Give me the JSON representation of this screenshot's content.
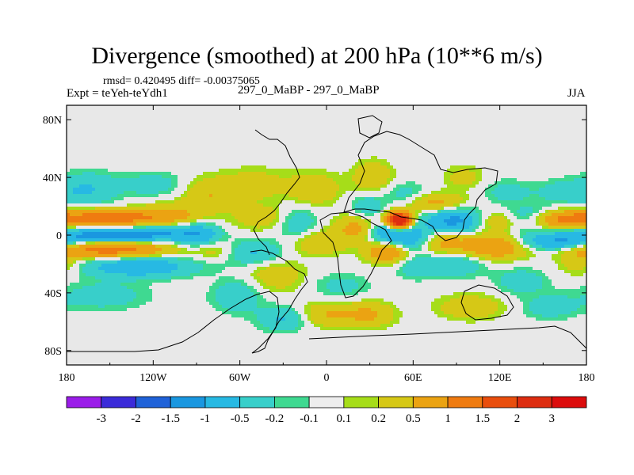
{
  "header": {
    "title": "Divergence (smoothed) at 200 hPa (10**6 m/s)",
    "stats": "rmsd= 0.420495 diff= -0.00375065",
    "expt": "Expt = teYeh-teYdh1",
    "diff_name": "297_0_MaBP - 297_0_MaBP",
    "season": "JJA"
  },
  "chart_data": {
    "type": "heatmap",
    "title": "Divergence (smoothed) at 200 hPa (10**6 m/s)",
    "xlabel": "",
    "ylabel": "",
    "xlim": [
      -180,
      180
    ],
    "ylim": [
      -90,
      90
    ],
    "xticks": [
      {
        "value": -180,
        "label": "180"
      },
      {
        "value": -120,
        "label": "120W"
      },
      {
        "value": -60,
        "label": "60W"
      },
      {
        "value": 0,
        "label": "0"
      },
      {
        "value": 60,
        "label": "60E"
      },
      {
        "value": 120,
        "label": "120E"
      },
      {
        "value": 180,
        "label": "180"
      }
    ],
    "yticks": [
      {
        "value": 80,
        "label": "80N"
      },
      {
        "value": 40,
        "label": "40N"
      },
      {
        "value": 0,
        "label": "0"
      },
      {
        "value": -40,
        "label": "40S"
      },
      {
        "value": -80,
        "label": "80S"
      }
    ],
    "colorbar": {
      "labels": [
        "-3",
        "-2",
        "-1.5",
        "-1",
        "-0.5",
        "-0.2",
        "-0.1",
        "0.1",
        "0.2",
        "0.5",
        "1",
        "1.5",
        "2",
        "3"
      ],
      "colors": [
        "#9b1de9",
        "#3b2bd9",
        "#1f62d8",
        "#1a97e0",
        "#27b9e3",
        "#38cfca",
        "#3fd991",
        "#ededed",
        "#a6dd19",
        "#d6c816",
        "#eba312",
        "#ef7b10",
        "#e94e0d",
        "#dd2d10",
        "#dc0c0c"
      ]
    },
    "features": [
      {
        "lon": -150,
        "lat": 12,
        "amp": 1.3,
        "sx": 26,
        "sy": 4
      },
      {
        "lon": -150,
        "lat": 0,
        "amp": -1.3,
        "sx": 28,
        "sy": 3.5
      },
      {
        "lon": -150,
        "lat": -10,
        "amp": 1.3,
        "sx": 28,
        "sy": 4
      },
      {
        "lon": -130,
        "lat": -22,
        "amp": -0.9,
        "sx": 26,
        "sy": 5
      },
      {
        "lon": -108,
        "lat": 14,
        "amp": 0.5,
        "sx": 16,
        "sy": 6
      },
      {
        "lon": -112,
        "lat": 2,
        "amp": -0.6,
        "sx": 14,
        "sy": 4
      },
      {
        "lon": -165,
        "lat": 32,
        "amp": -0.5,
        "sx": 14,
        "sy": 8
      },
      {
        "lon": -120,
        "lat": 35,
        "amp": -0.35,
        "sx": 16,
        "sy": 6
      },
      {
        "lon": -155,
        "lat": -42,
        "amp": -0.35,
        "sx": 22,
        "sy": 7
      },
      {
        "lon": -82,
        "lat": 28,
        "amp": 0.45,
        "sx": 13,
        "sy": 8
      },
      {
        "lon": -88,
        "lat": 0,
        "amp": -0.8,
        "sx": 10,
        "sy": 6
      },
      {
        "lon": -78,
        "lat": -10,
        "amp": 0.35,
        "sx": 10,
        "sy": 5
      },
      {
        "lon": -62,
        "lat": -42,
        "amp": -0.45,
        "sx": 12,
        "sy": 8
      },
      {
        "lon": -50,
        "lat": 35,
        "amp": 0.35,
        "sx": 18,
        "sy": 8
      },
      {
        "lon": -45,
        "lat": 12,
        "amp": 0.4,
        "sx": 14,
        "sy": 6
      },
      {
        "lon": -50,
        "lat": -12,
        "amp": -0.55,
        "sx": 14,
        "sy": 6
      },
      {
        "lon": -35,
        "lat": -28,
        "amp": 0.4,
        "sx": 14,
        "sy": 8
      },
      {
        "lon": -30,
        "lat": -58,
        "amp": -0.55,
        "sx": 12,
        "sy": 6
      },
      {
        "lon": -20,
        "lat": 8,
        "amp": -0.45,
        "sx": 10,
        "sy": 8
      },
      {
        "lon": -8,
        "lat": 32,
        "amp": 0.45,
        "sx": 12,
        "sy": 8
      },
      {
        "lon": -5,
        "lat": -5,
        "amp": 0.5,
        "sx": 14,
        "sy": 6
      },
      {
        "lon": 0,
        "lat": -55,
        "amp": 0.5,
        "sx": 14,
        "sy": 6
      },
      {
        "lon": 10,
        "lat": -35,
        "amp": -0.3,
        "sx": 14,
        "sy": 6
      },
      {
        "lon": 20,
        "lat": 5,
        "amp": 0.6,
        "sx": 10,
        "sy": 6
      },
      {
        "lon": 32,
        "lat": 40,
        "amp": 0.45,
        "sx": 10,
        "sy": 8
      },
      {
        "lon": 28,
        "lat": 20,
        "amp": -0.4,
        "sx": 8,
        "sy": 6
      },
      {
        "lon": 30,
        "lat": -55,
        "amp": 0.55,
        "sx": 12,
        "sy": 6
      },
      {
        "lon": 50,
        "lat": 10,
        "amp": 3.2,
        "sx": 6,
        "sy": 4
      },
      {
        "lon": 42,
        "lat": 2,
        "amp": -0.9,
        "sx": 8,
        "sy": 5
      },
      {
        "lon": 42,
        "lat": -12,
        "amp": 1.0,
        "sx": 10,
        "sy": 5
      },
      {
        "lon": 55,
        "lat": 28,
        "amp": -0.35,
        "sx": 12,
        "sy": 6
      },
      {
        "lon": 58,
        "lat": -2,
        "amp": -0.9,
        "sx": 10,
        "sy": 6
      },
      {
        "lon": 62,
        "lat": -22,
        "amp": -0.35,
        "sx": 10,
        "sy": 6
      },
      {
        "lon": 75,
        "lat": 22,
        "amp": 0.7,
        "sx": 14,
        "sy": 5
      },
      {
        "lon": 80,
        "lat": -5,
        "amp": 0.6,
        "sx": 12,
        "sy": 6
      },
      {
        "lon": 88,
        "lat": 10,
        "amp": -1.2,
        "sx": 14,
        "sy": 6
      },
      {
        "lon": 90,
        "lat": -20,
        "amp": -0.5,
        "sx": 14,
        "sy": 6
      },
      {
        "lon": 95,
        "lat": 40,
        "amp": 0.3,
        "sx": 10,
        "sy": 6
      },
      {
        "lon": 100,
        "lat": -50,
        "amp": 0.45,
        "sx": 16,
        "sy": 6
      },
      {
        "lon": 118,
        "lat": 10,
        "amp": 0.55,
        "sx": 12,
        "sy": 5
      },
      {
        "lon": 115,
        "lat": -8,
        "amp": 1.0,
        "sx": 16,
        "sy": 6
      },
      {
        "lon": 125,
        "lat": 30,
        "amp": -0.3,
        "sx": 12,
        "sy": 6
      },
      {
        "lon": 140,
        "lat": 10,
        "amp": -0.8,
        "sx": 14,
        "sy": 6
      },
      {
        "lon": 135,
        "lat": -32,
        "amp": -0.4,
        "sx": 12,
        "sy": 6
      },
      {
        "lon": 150,
        "lat": 8,
        "amp": 0.55,
        "sx": 18,
        "sy": 4
      },
      {
        "lon": 160,
        "lat": -5,
        "amp": -1.0,
        "sx": 18,
        "sy": 4
      },
      {
        "lon": 165,
        "lat": 12,
        "amp": 0.8,
        "sx": 16,
        "sy": 4
      },
      {
        "lon": 165,
        "lat": 30,
        "amp": -0.35,
        "sx": 14,
        "sy": 6
      },
      {
        "lon": 155,
        "lat": -50,
        "amp": -0.35,
        "sx": 14,
        "sy": 6
      },
      {
        "lon": 175,
        "lat": -20,
        "amp": 0.4,
        "sx": 10,
        "sy": 6
      }
    ]
  }
}
